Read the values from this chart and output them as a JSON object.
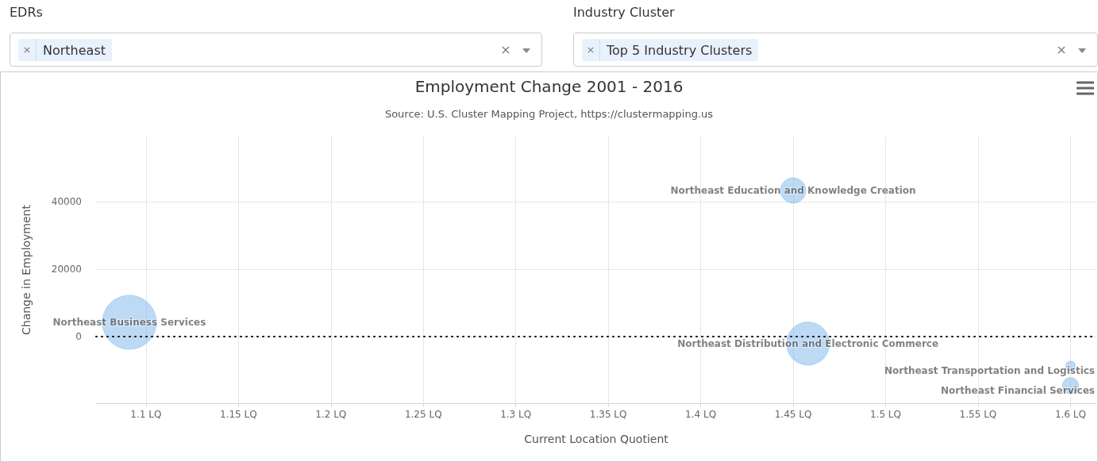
{
  "chart_data": {
    "type": "bubble",
    "title": "Employment Change 2001 - 2016",
    "subtitle": "Source: U.S. Cluster Mapping Project, https://clustermapping.us",
    "xlabel": "Current Location Quotient",
    "ylabel": "Change in Employment",
    "annotations": [
      "EDRs",
      "Northeast",
      "Industry Cluster",
      "Top 5 Industry Clusters"
    ],
    "series": [
      {
        "name": "Northeast Business Services",
        "color": "#7cb5ec",
        "x": [
          1.091
        ],
        "values": [
          4200
        ],
        "sizes": [
          1
        ]
      },
      {
        "name": "Northeast Education and Knowledge Creation",
        "color": "#7cb5ec",
        "x": [
          1.45
        ],
        "values": [
          43300
        ],
        "sizes": [
          0.22
        ]
      },
      {
        "name": "Northeast Distribution and Electronic Commerce",
        "color": "#7cb5ec",
        "x": [
          1.458
        ],
        "values": [
          -2100
        ],
        "sizes": [
          0.63
        ]
      },
      {
        "name": "Northeast Transportation and Logistics",
        "color": "#7cb5ec",
        "x": [
          1.6
        ],
        "values": [
          -8700
        ],
        "sizes": [
          0.03
        ]
      },
      {
        "name": "Northeast Financial Services",
        "color": "#7cb5ec",
        "x": [
          1.6
        ],
        "values": [
          -14600
        ],
        "sizes": [
          0.09
        ]
      }
    ],
    "xlim": [
      1.073,
      1.614
    ],
    "ylim": [
      -19800,
      59300
    ],
    "xticks": [
      {
        "value": 1.1,
        "label": "1.1 LQ"
      },
      {
        "value": 1.15,
        "label": "1.15 LQ"
      },
      {
        "value": 1.2,
        "label": "1.2 LQ"
      },
      {
        "value": 1.25,
        "label": "1.25 LQ"
      },
      {
        "value": 1.3,
        "label": "1.3 LQ"
      },
      {
        "value": 1.35,
        "label": "1.35 LQ"
      },
      {
        "value": 1.4,
        "label": "1.4 LQ"
      },
      {
        "value": 1.45,
        "label": "1.45 LQ"
      },
      {
        "value": 1.5,
        "label": "1.5 LQ"
      },
      {
        "value": 1.55,
        "label": "1.55 LQ"
      },
      {
        "value": 1.6,
        "label": "1.6 LQ"
      }
    ],
    "yticks": [
      0,
      20000,
      40000
    ],
    "ref_lines": [
      {
        "axis": "y",
        "value": 0,
        "label": null,
        "color": "#000000",
        "line_style": "dotted"
      }
    ],
    "grid": true,
    "legend": false
  }
}
